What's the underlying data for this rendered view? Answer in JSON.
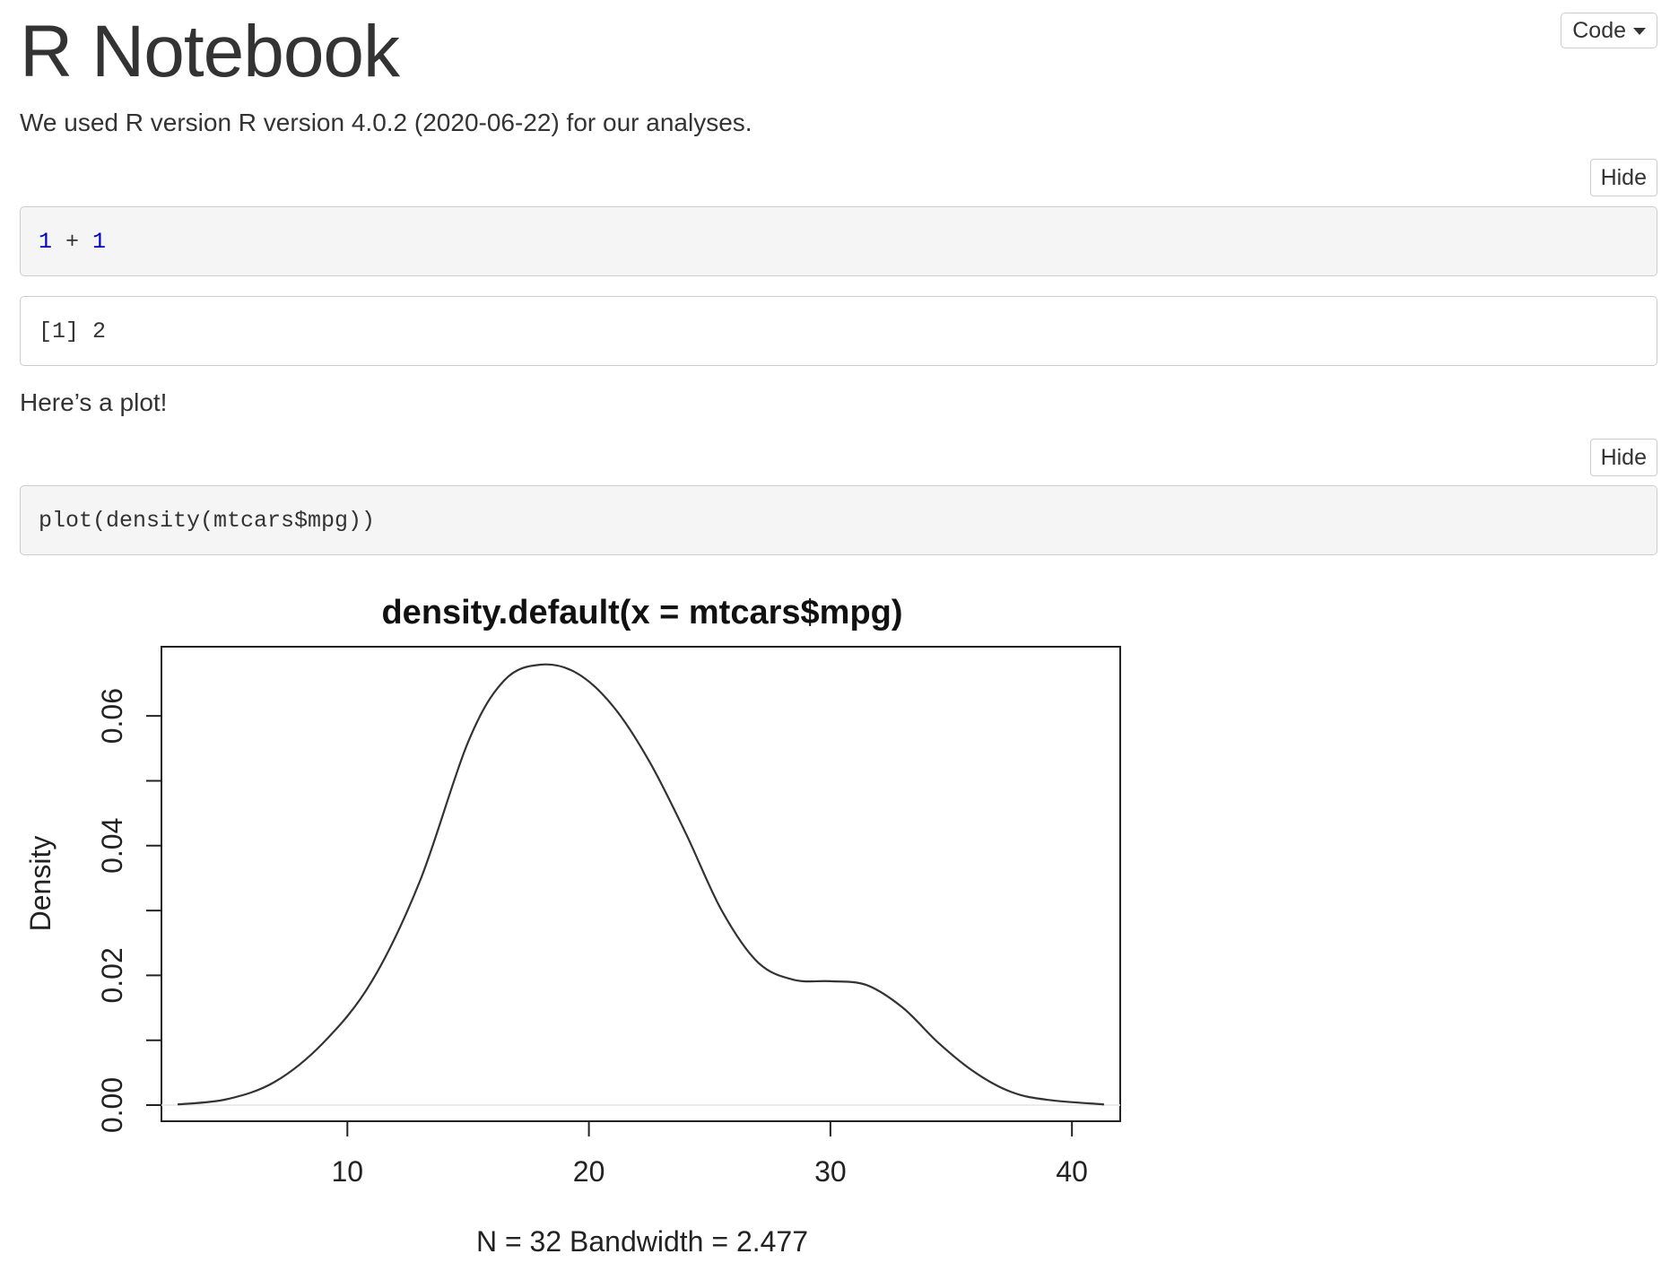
{
  "header": {
    "title": "R Notebook",
    "code_menu_label": "Code"
  },
  "intro_text": "We used R version R version 4.0.2 (2020-06-22) for our analyses.",
  "chunk1": {
    "hide_label": "Hide",
    "code_num1": "1",
    "code_op": " + ",
    "code_num2": "1",
    "output": "[1] 2"
  },
  "plot_intro_text": "Here’s a plot!",
  "chunk2": {
    "hide_label": "Hide",
    "code": "plot(density(mtcars$mpg))"
  },
  "chart_data": {
    "type": "line",
    "title": "density.default(x = mtcars$mpg)",
    "xlabel": "N = 32   Bandwidth = 2.477",
    "ylabel": "Density",
    "xlim": [
      2.97,
      41.33
    ],
    "ylim": [
      0,
      0.0679
    ],
    "x_ticks": [
      10,
      20,
      30,
      40
    ],
    "y_ticks": [
      0.0,
      0.01,
      0.02,
      0.03,
      0.04,
      0.05,
      0.06
    ],
    "y_tick_labels": [
      "0.00",
      "",
      "0.02",
      "",
      "0.04",
      "",
      "0.06"
    ],
    "line_color": "#333333",
    "series": [
      {
        "x": [
          2.97,
          5,
          7,
          9,
          11,
          13,
          15,
          16.5,
          18,
          19.5,
          21,
          22.5,
          24,
          25.5,
          27,
          28.5,
          30,
          31.5,
          33,
          34.5,
          36,
          37.5,
          39,
          41.33
        ],
        "values": [
          0.0001,
          0.0009,
          0.0036,
          0.0096,
          0.019,
          0.0345,
          0.056,
          0.0655,
          0.0679,
          0.0666,
          0.0615,
          0.053,
          0.042,
          0.03,
          0.022,
          0.0193,
          0.0191,
          0.0185,
          0.015,
          0.0095,
          0.005,
          0.002,
          0.0008,
          0.0001
        ]
      }
    ]
  }
}
